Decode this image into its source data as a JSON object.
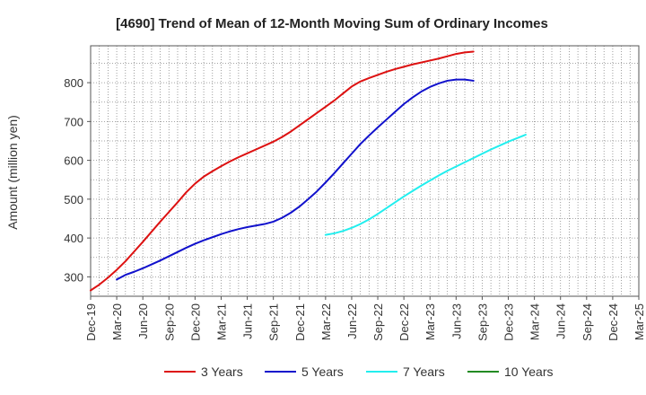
{
  "chart_data": {
    "type": "line",
    "title": "[4690]  Trend of Mean of 12-Month Moving Sum of Ordinary Incomes",
    "xlabel": "",
    "ylabel": "Amount (million yen)",
    "ylim": [
      250,
      895
    ],
    "yticks": [
      300,
      400,
      500,
      600,
      700,
      800
    ],
    "grid": true,
    "legend_position": "bottom",
    "x_tick_labels": [
      "Dec-19",
      "Mar-20",
      "Jun-20",
      "Sep-20",
      "Dec-20",
      "Mar-21",
      "Jun-21",
      "Sep-21",
      "Dec-21",
      "Mar-22",
      "Jun-22",
      "Sep-22",
      "Dec-22",
      "Mar-23",
      "Jun-23",
      "Sep-23",
      "Dec-23",
      "Mar-24",
      "Jun-24",
      "Sep-24",
      "Dec-24",
      "Mar-25"
    ],
    "series": [
      {
        "name": "3 Years",
        "color": "#dd1111",
        "start_index": 0,
        "values": [
          265,
          280,
          298,
          318,
          340,
          365,
          390,
          416,
          442,
          467,
          492,
          518,
          540,
          558,
          572,
          585,
          597,
          608,
          618,
          628,
          638,
          648,
          660,
          674,
          690,
          706,
          722,
          738,
          754,
          772,
          790,
          803,
          812,
          820,
          828,
          835,
          841,
          847,
          852,
          857,
          862,
          868,
          874,
          878,
          880
        ]
      },
      {
        "name": "5 Years",
        "color": "#1111cc",
        "start_index": 3,
        "values": [
          293,
          305,
          313,
          322,
          332,
          342,
          353,
          364,
          375,
          385,
          394,
          402,
          410,
          417,
          423,
          428,
          432,
          436,
          442,
          452,
          465,
          481,
          500,
          520,
          543,
          567,
          592,
          617,
          642,
          664,
          685,
          705,
          725,
          745,
          762,
          777,
          789,
          798,
          805,
          808,
          808,
          805
        ]
      },
      {
        "name": "7 Years",
        "color": "#22eeee",
        "start_index": 27,
        "values": [
          408,
          412,
          418,
          426,
          436,
          448,
          462,
          477,
          492,
          507,
          521,
          535,
          548,
          561,
          573,
          584,
          595,
          606,
          617,
          628,
          638,
          648,
          657,
          666
        ]
      },
      {
        "name": "10 Years",
        "color": "#228b22",
        "start_index": 0,
        "values": []
      }
    ]
  }
}
